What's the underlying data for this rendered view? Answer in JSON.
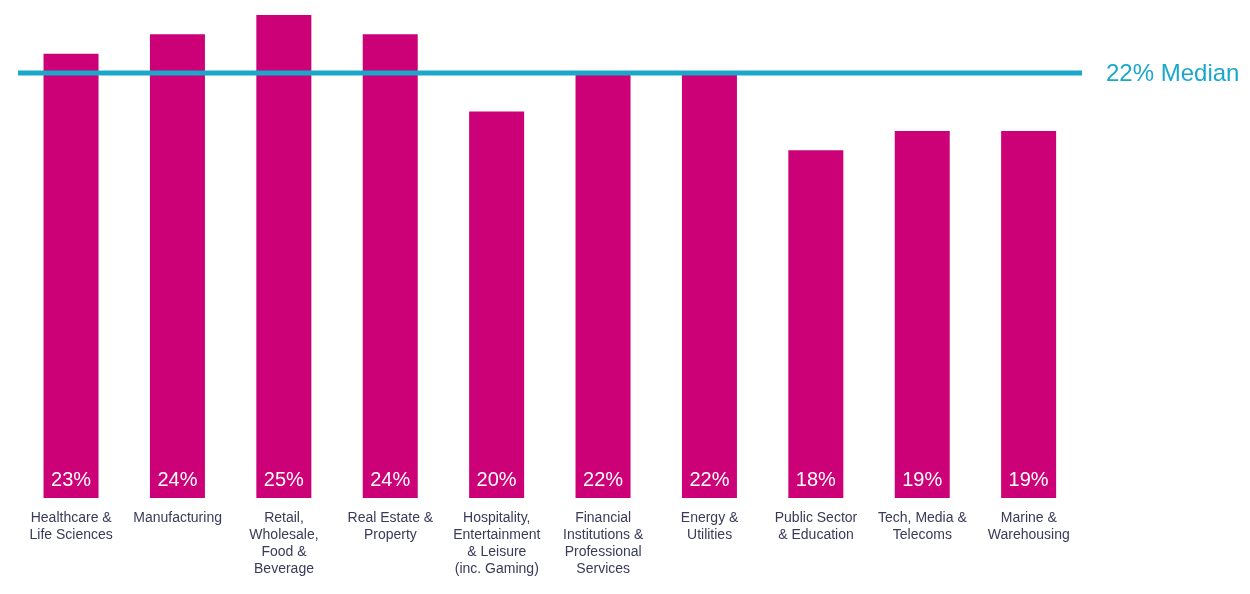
{
  "chart_data": {
    "type": "bar",
    "categories": [
      "Healthcare & Life Sciences",
      "Manufacturing",
      "Retail, Wholesale, Food & Beverage",
      "Real Estate & Property",
      "Hospitality, Entertainment & Leisure (inc. Gaming)",
      "Financial Institutions & Professional Services",
      "Energy & Utilities",
      "Public Sector & Education",
      "Tech, Media & Telecoms",
      "Marine & Warehousing"
    ],
    "values": [
      23,
      24,
      25,
      24,
      20,
      22,
      22,
      18,
      19,
      19
    ],
    "value_labels": [
      "23%",
      "24%",
      "25%",
      "24%",
      "20%",
      "22%",
      "22%",
      "18%",
      "19%",
      "19%"
    ],
    "color": "#cc0077",
    "ref_lines": [
      {
        "axis": "y",
        "value": 22,
        "label": "22% Median",
        "color": "#1aa7c9"
      }
    ],
    "grid": false,
    "legend": false
  }
}
